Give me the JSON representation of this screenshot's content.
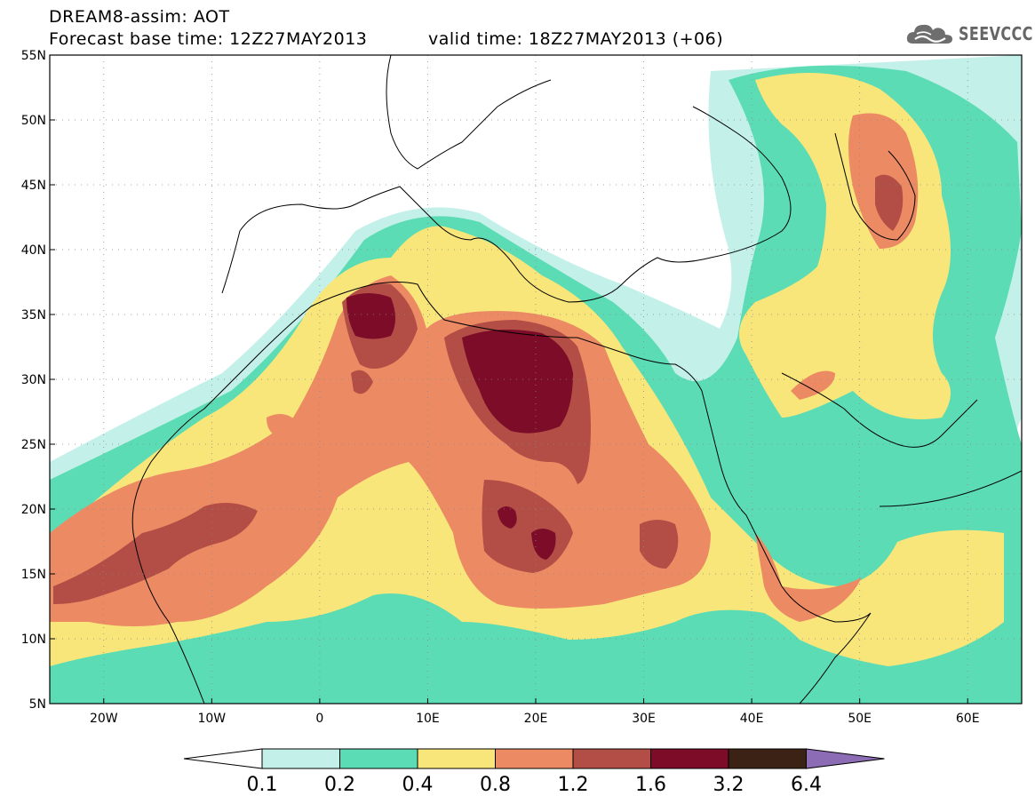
{
  "header": {
    "title": "DREAM8-assim: AOT",
    "base_time": "Forecast base time: 12Z27MAY2013",
    "valid_time": "valid time: 18Z27MAY2013 (+06)",
    "logo_text": "SEEVCCC",
    "logo_icon": "cloud-icon"
  },
  "map": {
    "lon_range": [
      -25,
      65
    ],
    "lat_range": [
      5,
      55
    ],
    "lat_ticks": [
      {
        "value": 55,
        "label": "55N"
      },
      {
        "value": 50,
        "label": "50N"
      },
      {
        "value": 45,
        "label": "45N"
      },
      {
        "value": 40,
        "label": "40N"
      },
      {
        "value": 35,
        "label": "35N"
      },
      {
        "value": 30,
        "label": "30N"
      },
      {
        "value": 25,
        "label": "25N"
      },
      {
        "value": 20,
        "label": "20N"
      },
      {
        "value": 15,
        "label": "15N"
      },
      {
        "value": 10,
        "label": "10N"
      },
      {
        "value": 5,
        "label": "5N"
      }
    ],
    "lon_ticks": [
      {
        "value": -20,
        "label": "20W"
      },
      {
        "value": -10,
        "label": "10W"
      },
      {
        "value": 0,
        "label": "0"
      },
      {
        "value": 10,
        "label": "10E"
      },
      {
        "value": 20,
        "label": "20E"
      },
      {
        "value": 30,
        "label": "30E"
      },
      {
        "value": 40,
        "label": "40E"
      },
      {
        "value": 50,
        "label": "50E"
      },
      {
        "value": 60,
        "label": "60E"
      }
    ],
    "grid": true,
    "grid_style": "dotted"
  },
  "legend": {
    "labels": [
      "0.1",
      "0.2",
      "0.4",
      "0.8",
      "1.2",
      "1.6",
      "3.2",
      "6.4"
    ],
    "colors": [
      "#ffffff",
      "#c4f0ea",
      "#5cdcb4",
      "#f8e67a",
      "#ec8a64",
      "#b34e46",
      "#7c0c28",
      "#3c2214",
      "#8c6cb4"
    ]
  }
}
